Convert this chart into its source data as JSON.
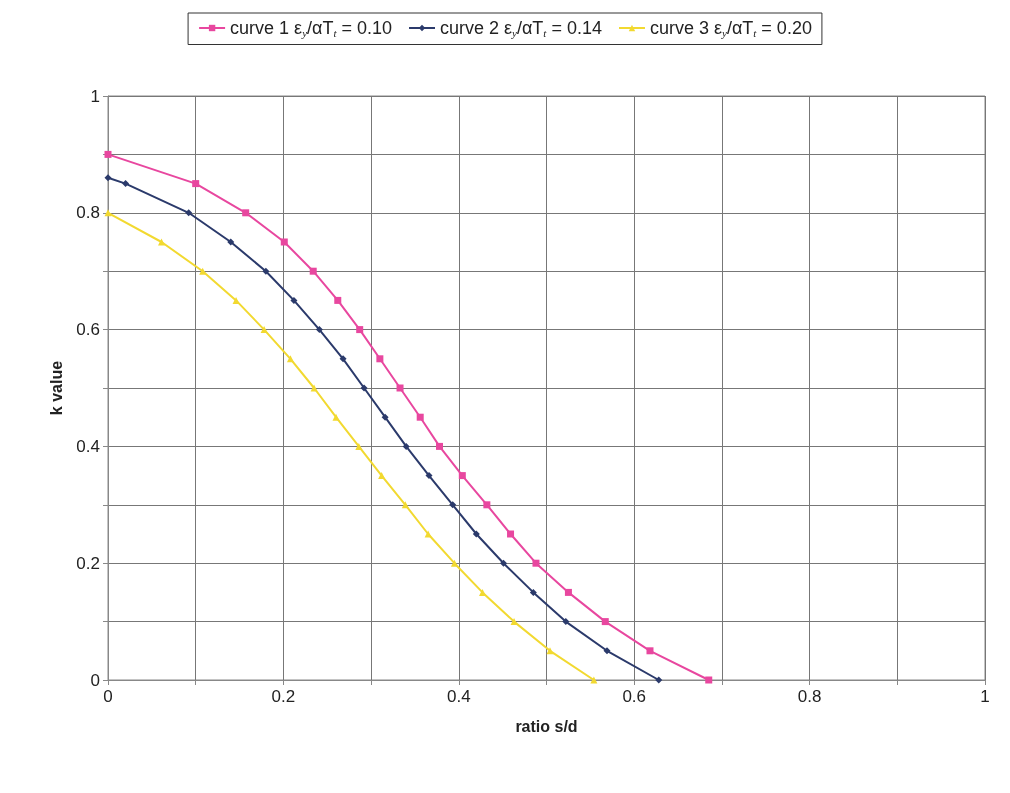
{
  "chart_data": {
    "type": "line",
    "xlabel": "ratio s/d",
    "ylabel": "k value",
    "xlim": [
      0,
      1
    ],
    "ylim": [
      0,
      1
    ],
    "xticks": [
      0,
      {
        "value": 0.1,
        "label": null
      },
      0.2,
      {
        "value": 0.3,
        "label": null
      },
      0.4,
      {
        "value": 0.5,
        "label": null
      },
      0.6,
      {
        "value": 0.7,
        "label": null
      },
      0.8,
      {
        "value": 0.9,
        "label": null
      },
      1
    ],
    "yticks": [
      0,
      {
        "value": 0.1,
        "label": null
      },
      0.2,
      {
        "value": 0.3,
        "label": null
      },
      0.4,
      {
        "value": 0.5,
        "label": null
      },
      0.6,
      {
        "value": 0.7,
        "label": null
      },
      0.8,
      {
        "value": 0.9,
        "label": null
      },
      1
    ],
    "grid": true,
    "legend": "top",
    "line_style": "solid",
    "series": [
      {
        "name": "curve 1 ε$_{y}$/αT$_{t}$ = 0.10",
        "color": "#e8479f",
        "marker": "square",
        "x": [
          0,
          0.1,
          0.157,
          0.201,
          0.234,
          0.262,
          0.287,
          0.31,
          0.333,
          0.356,
          0.378,
          0.404,
          0.432,
          0.459,
          0.488,
          0.525,
          0.567,
          0.618,
          0.685
        ],
        "values": [
          0.9,
          0.85,
          0.8,
          0.75,
          0.7,
          0.65,
          0.6,
          0.55,
          0.5,
          0.45,
          0.4,
          0.35,
          0.3,
          0.25,
          0.2,
          0.15,
          0.1,
          0.05,
          0
        ]
      },
      {
        "name": "curve 2 ε$_{y}$/αT$_{t}$ = 0.14",
        "color": "#2b3a6b",
        "marker": "diamond",
        "x": [
          0,
          0.02,
          0.092,
          0.14,
          0.18,
          0.212,
          0.241,
          0.268,
          0.292,
          0.316,
          0.34,
          0.366,
          0.393,
          0.42,
          0.451,
          0.485,
          0.522,
          0.569,
          0.628
        ],
        "values": [
          0.86,
          0.85,
          0.8,
          0.75,
          0.7,
          0.65,
          0.6,
          0.55,
          0.5,
          0.45,
          0.4,
          0.35,
          0.3,
          0.25,
          0.2,
          0.15,
          0.1,
          0.05,
          0
        ]
      },
      {
        "name": "curve 3 ε$_{y}$/αT$_{t}$ = 0.20",
        "color": "#f2d930",
        "marker": "triangle",
        "x": [
          0,
          0.061,
          0.108,
          0.146,
          0.178,
          0.208,
          0.235,
          0.26,
          0.286,
          0.312,
          0.339,
          0.365,
          0.395,
          0.427,
          0.463,
          0.504,
          0.554
        ],
        "values": [
          0.8,
          0.75,
          0.7,
          0.65,
          0.6,
          0.55,
          0.5,
          0.45,
          0.4,
          0.35,
          0.3,
          0.25,
          0.2,
          0.15,
          0.1,
          0.05,
          0
        ]
      }
    ]
  }
}
